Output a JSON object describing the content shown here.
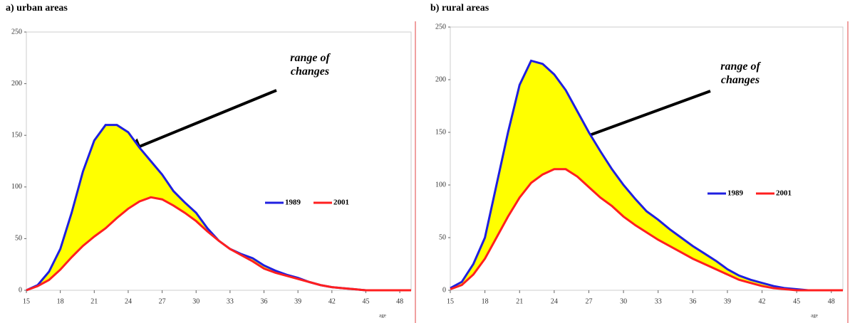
{
  "chart_data": [
    {
      "type": "line",
      "title": "a) urban areas",
      "annotation": "range of changes",
      "xlabel": "age",
      "x": [
        15,
        16,
        17,
        18,
        19,
        20,
        21,
        22,
        23,
        24,
        25,
        26,
        27,
        28,
        29,
        30,
        31,
        32,
        33,
        34,
        35,
        36,
        37,
        38,
        39,
        40,
        41,
        42,
        43,
        44,
        45,
        46,
        47,
        48,
        49
      ],
      "series": [
        {
          "name": "1989",
          "color": "#1f1fe0",
          "values": [
            0,
            5,
            18,
            40,
            75,
            115,
            145,
            160,
            160,
            153,
            138,
            125,
            112,
            96,
            85,
            75,
            60,
            48,
            40,
            35,
            31,
            24,
            19,
            15,
            12,
            8,
            5,
            3,
            2,
            1,
            0,
            0,
            0,
            0,
            0
          ]
        },
        {
          "name": "2001",
          "color": "#ff1f1f",
          "values": [
            0,
            4,
            10,
            20,
            32,
            43,
            52,
            60,
            70,
            79,
            86,
            90,
            88,
            82,
            75,
            67,
            57,
            48,
            40,
            34,
            28,
            21,
            17,
            14,
            11,
            8,
            5,
            3,
            2,
            1,
            0,
            0,
            0,
            0,
            0
          ]
        }
      ],
      "fill_color": "#ffff00",
      "xlim": [
        15,
        49
      ],
      "xticks": [
        15,
        18,
        21,
        24,
        27,
        30,
        33,
        36,
        39,
        42,
        45,
        48
      ],
      "ylim": [
        0,
        250
      ],
      "yticks": [
        0,
        50,
        100,
        150,
        200,
        250
      ],
      "legend": "right"
    },
    {
      "type": "line",
      "title": "b) rural areas",
      "annotation": "range of changes",
      "xlabel": "age",
      "x": [
        15,
        16,
        17,
        18,
        19,
        20,
        21,
        22,
        23,
        24,
        25,
        26,
        27,
        28,
        29,
        30,
        31,
        32,
        33,
        34,
        35,
        36,
        37,
        38,
        39,
        40,
        41,
        42,
        43,
        44,
        45,
        46,
        47,
        48,
        49
      ],
      "series": [
        {
          "name": "1989",
          "color": "#1f1fe0",
          "values": [
            2,
            8,
            25,
            50,
            100,
            150,
            195,
            218,
            215,
            205,
            190,
            170,
            150,
            132,
            115,
            100,
            87,
            75,
            67,
            58,
            50,
            42,
            35,
            28,
            20,
            14,
            10,
            7,
            4,
            2,
            1,
            0,
            0,
            0,
            0
          ]
        },
        {
          "name": "2001",
          "color": "#ff1f1f",
          "values": [
            1,
            5,
            15,
            30,
            50,
            70,
            88,
            102,
            110,
            115,
            115,
            108,
            98,
            88,
            80,
            70,
            62,
            55,
            48,
            42,
            36,
            30,
            25,
            20,
            15,
            10,
            7,
            4,
            2,
            1,
            0,
            0,
            0,
            0,
            0
          ]
        }
      ],
      "fill_color": "#ffff00",
      "xlim": [
        15,
        49
      ],
      "xticks": [
        15,
        18,
        21,
        24,
        27,
        30,
        33,
        36,
        39,
        42,
        45,
        48
      ],
      "ylim": [
        0,
        250
      ],
      "yticks": [
        0,
        50,
        100,
        150,
        200,
        250
      ],
      "legend": "right"
    }
  ]
}
